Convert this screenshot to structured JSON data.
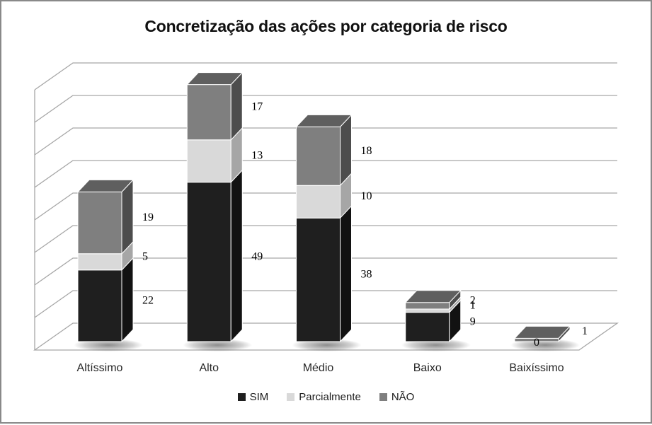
{
  "chart": {
    "title": "Concretização das ações por categoria de risco"
  },
  "chart_data": {
    "type": "bar",
    "subtype": "3d-stacked-column",
    "title": "Concretização das ações por categoria de risco",
    "categories": [
      "Altíssimo",
      "Alto",
      "Médio",
      "Baixo",
      "Baixíssimo"
    ],
    "series": [
      {
        "name": "SIM",
        "values": [
          22,
          49,
          38,
          9,
          0
        ],
        "color": "#1f1f1f",
        "side_color": "#121212",
        "top_color": "#3c3c3c"
      },
      {
        "name": "Parcialmente",
        "values": [
          5,
          13,
          10,
          1,
          0
        ],
        "color": "#d9d9d9",
        "side_color": "#a6a6a6",
        "top_color": "#c2c2c2"
      },
      {
        "name": "NÃO",
        "values": [
          19,
          17,
          18,
          2,
          1
        ],
        "color": "#7f7f7f",
        "side_color": "#4d4d4d",
        "top_color": "#5f5f5f"
      }
    ],
    "data_labels": true,
    "visible_value_labels": [
      "22",
      "5",
      "19",
      "49",
      "13",
      "17",
      "38",
      "10",
      "18",
      "9",
      "1",
      "2",
      "0",
      "1"
    ],
    "xlabel": "",
    "ylabel": "",
    "ylim": [
      0,
      80
    ],
    "y_major_unit": 10,
    "y_tick_labels_shown": false,
    "gridlines": true,
    "legend_position": "bottom"
  },
  "colors": {
    "frame_border": "#898989",
    "gridline": "#a6a6a6",
    "background": "#ffffff",
    "label_text": "#000000"
  }
}
